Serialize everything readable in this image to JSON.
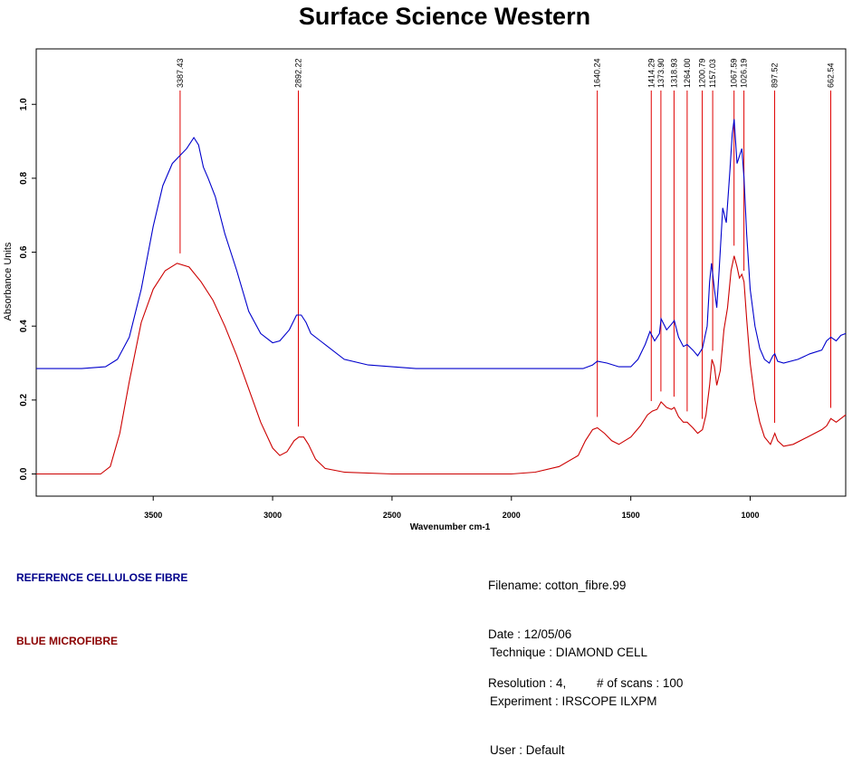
{
  "title": "Surface Science Western",
  "chart_data": {
    "type": "line",
    "xlabel": "Wavenumber cm-1",
    "ylabel": "Absorbance Units",
    "xlim": [
      3990,
      600
    ],
    "ylim": [
      -0.06,
      1.15
    ],
    "x_ticks": [
      3500,
      3000,
      2500,
      2000,
      1500,
      1000
    ],
    "y_ticks": [
      0.0,
      0.2,
      0.4,
      0.6,
      0.8,
      1.0
    ],
    "y_tick_labels": [
      "0.0",
      "0.2",
      "0.4",
      "0.6",
      "0.8",
      "1.0"
    ],
    "grid": false,
    "peak_markers": [
      {
        "x": 3387.43,
        "label": "3387.43"
      },
      {
        "x": 2892.22,
        "label": "2892.22"
      },
      {
        "x": 1640.24,
        "label": "1640.24"
      },
      {
        "x": 1414.29,
        "label": "1414.29"
      },
      {
        "x": 1373.9,
        "label": "1373.90"
      },
      {
        "x": 1318.93,
        "label": "1318.93"
      },
      {
        "x": 1264.0,
        "label": "1264.00"
      },
      {
        "x": 1200.79,
        "label": "1200.79"
      },
      {
        "x": 1157.03,
        "label": "1157.03"
      },
      {
        "x": 1067.59,
        "label": "1067.59"
      },
      {
        "x": 1026.19,
        "label": "1026.19"
      },
      {
        "x": 897.52,
        "label": "897.52"
      },
      {
        "x": 662.54,
        "label": "662.54"
      }
    ],
    "series": [
      {
        "name": "REFERENCE CELLULOSE FIBRE",
        "color": "#0000cc",
        "points": [
          [
            3990,
            0.285
          ],
          [
            3800,
            0.285
          ],
          [
            3700,
            0.29
          ],
          [
            3650,
            0.31
          ],
          [
            3600,
            0.37
          ],
          [
            3550,
            0.5
          ],
          [
            3500,
            0.67
          ],
          [
            3460,
            0.78
          ],
          [
            3420,
            0.84
          ],
          [
            3390,
            0.86
          ],
          [
            3360,
            0.88
          ],
          [
            3330,
            0.91
          ],
          [
            3310,
            0.89
          ],
          [
            3290,
            0.83
          ],
          [
            3270,
            0.8
          ],
          [
            3240,
            0.75
          ],
          [
            3200,
            0.65
          ],
          [
            3150,
            0.55
          ],
          [
            3100,
            0.44
          ],
          [
            3050,
            0.38
          ],
          [
            3000,
            0.355
          ],
          [
            2970,
            0.36
          ],
          [
            2930,
            0.39
          ],
          [
            2900,
            0.43
          ],
          [
            2880,
            0.43
          ],
          [
            2860,
            0.41
          ],
          [
            2840,
            0.38
          ],
          [
            2800,
            0.36
          ],
          [
            2700,
            0.31
          ],
          [
            2600,
            0.295
          ],
          [
            2500,
            0.29
          ],
          [
            2400,
            0.285
          ],
          [
            2200,
            0.285
          ],
          [
            2000,
            0.285
          ],
          [
            1800,
            0.285
          ],
          [
            1700,
            0.285
          ],
          [
            1660,
            0.295
          ],
          [
            1640,
            0.305
          ],
          [
            1600,
            0.3
          ],
          [
            1550,
            0.29
          ],
          [
            1500,
            0.29
          ],
          [
            1470,
            0.31
          ],
          [
            1440,
            0.35
          ],
          [
            1420,
            0.385
          ],
          [
            1400,
            0.36
          ],
          [
            1380,
            0.38
          ],
          [
            1373,
            0.42
          ],
          [
            1350,
            0.39
          ],
          [
            1330,
            0.405
          ],
          [
            1318,
            0.415
          ],
          [
            1300,
            0.37
          ],
          [
            1280,
            0.345
          ],
          [
            1264,
            0.35
          ],
          [
            1240,
            0.335
          ],
          [
            1220,
            0.32
          ],
          [
            1200,
            0.34
          ],
          [
            1180,
            0.4
          ],
          [
            1170,
            0.52
          ],
          [
            1162,
            0.57
          ],
          [
            1150,
            0.5
          ],
          [
            1140,
            0.45
          ],
          [
            1130,
            0.55
          ],
          [
            1115,
            0.72
          ],
          [
            1100,
            0.68
          ],
          [
            1085,
            0.82
          ],
          [
            1075,
            0.92
          ],
          [
            1067,
            0.96
          ],
          [
            1055,
            0.84
          ],
          [
            1045,
            0.86
          ],
          [
            1035,
            0.88
          ],
          [
            1026,
            0.8
          ],
          [
            1015,
            0.65
          ],
          [
            1000,
            0.5
          ],
          [
            980,
            0.4
          ],
          [
            960,
            0.34
          ],
          [
            940,
            0.31
          ],
          [
            920,
            0.3
          ],
          [
            905,
            0.32
          ],
          [
            897,
            0.325
          ],
          [
            885,
            0.305
          ],
          [
            860,
            0.3
          ],
          [
            800,
            0.31
          ],
          [
            750,
            0.325
          ],
          [
            700,
            0.335
          ],
          [
            680,
            0.36
          ],
          [
            662,
            0.37
          ],
          [
            640,
            0.36
          ],
          [
            620,
            0.375
          ],
          [
            600,
            0.38
          ]
        ]
      },
      {
        "name": "BLUE MICROFIBRE",
        "color": "#cc0000",
        "points": [
          [
            3990,
            0.0
          ],
          [
            3800,
            0.0
          ],
          [
            3720,
            0.0
          ],
          [
            3680,
            0.02
          ],
          [
            3640,
            0.11
          ],
          [
            3600,
            0.25
          ],
          [
            3550,
            0.41
          ],
          [
            3500,
            0.5
          ],
          [
            3450,
            0.55
          ],
          [
            3400,
            0.57
          ],
          [
            3350,
            0.56
          ],
          [
            3300,
            0.52
          ],
          [
            3250,
            0.47
          ],
          [
            3200,
            0.4
          ],
          [
            3150,
            0.32
          ],
          [
            3100,
            0.23
          ],
          [
            3050,
            0.14
          ],
          [
            3000,
            0.07
          ],
          [
            2970,
            0.05
          ],
          [
            2940,
            0.06
          ],
          [
            2910,
            0.09
          ],
          [
            2890,
            0.1
          ],
          [
            2870,
            0.1
          ],
          [
            2850,
            0.08
          ],
          [
            2820,
            0.04
          ],
          [
            2780,
            0.015
          ],
          [
            2700,
            0.005
          ],
          [
            2500,
            0.0
          ],
          [
            2200,
            0.0
          ],
          [
            2000,
            0.0
          ],
          [
            1900,
            0.005
          ],
          [
            1800,
            0.02
          ],
          [
            1720,
            0.05
          ],
          [
            1690,
            0.09
          ],
          [
            1660,
            0.12
          ],
          [
            1640,
            0.125
          ],
          [
            1610,
            0.11
          ],
          [
            1580,
            0.09
          ],
          [
            1550,
            0.08
          ],
          [
            1500,
            0.1
          ],
          [
            1460,
            0.13
          ],
          [
            1430,
            0.16
          ],
          [
            1410,
            0.17
          ],
          [
            1390,
            0.175
          ],
          [
            1373,
            0.195
          ],
          [
            1350,
            0.18
          ],
          [
            1330,
            0.175
          ],
          [
            1318,
            0.18
          ],
          [
            1300,
            0.155
          ],
          [
            1280,
            0.14
          ],
          [
            1264,
            0.14
          ],
          [
            1240,
            0.125
          ],
          [
            1220,
            0.11
          ],
          [
            1200,
            0.12
          ],
          [
            1185,
            0.16
          ],
          [
            1170,
            0.24
          ],
          [
            1160,
            0.31
          ],
          [
            1150,
            0.29
          ],
          [
            1140,
            0.24
          ],
          [
            1125,
            0.28
          ],
          [
            1110,
            0.39
          ],
          [
            1095,
            0.45
          ],
          [
            1080,
            0.55
          ],
          [
            1067,
            0.59
          ],
          [
            1055,
            0.56
          ],
          [
            1045,
            0.53
          ],
          [
            1035,
            0.54
          ],
          [
            1026,
            0.52
          ],
          [
            1015,
            0.42
          ],
          [
            1000,
            0.3
          ],
          [
            980,
            0.2
          ],
          [
            960,
            0.14
          ],
          [
            940,
            0.1
          ],
          [
            915,
            0.08
          ],
          [
            897,
            0.11
          ],
          [
            885,
            0.09
          ],
          [
            860,
            0.075
          ],
          [
            820,
            0.08
          ],
          [
            760,
            0.1
          ],
          [
            700,
            0.12
          ],
          [
            680,
            0.13
          ],
          [
            662,
            0.15
          ],
          [
            640,
            0.14
          ],
          [
            600,
            0.16
          ]
        ]
      }
    ]
  },
  "legend": {
    "reference_label": "REFERENCE CELLULOSE FIBRE",
    "blue_label": "BLUE MICROFIBRE"
  },
  "info": {
    "filename": "Filename: cotton_fibre.99",
    "date": "Date : 12/05/06",
    "resolution": "Resolution : 4,         # of scans : 100",
    "technique": "Technique : DIAMOND CELL",
    "experiment": "Experiment : IRSCOPE ILXPM",
    "user": "User : Default"
  }
}
